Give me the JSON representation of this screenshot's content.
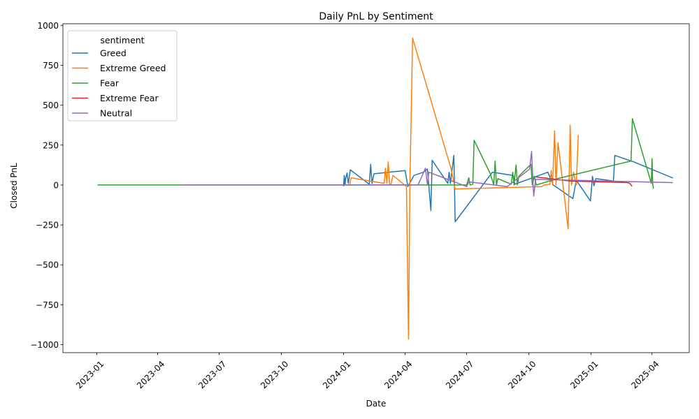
{
  "chart_data": {
    "type": "line",
    "title": "Daily PnL by Sentiment",
    "xlabel": "Date",
    "ylabel": "Closed PnL",
    "x_axis_type": "date",
    "xlim": [
      "2022-11-12",
      "2025-05-26"
    ],
    "ylim": [
      -1050,
      1010
    ],
    "x_ticks": [
      "2023-01",
      "2023-04",
      "2023-07",
      "2023-10",
      "2024-01",
      "2024-04",
      "2024-07",
      "2024-10",
      "2025-01",
      "2025-04"
    ],
    "y_ticks": [
      -1000,
      -750,
      -500,
      -250,
      0,
      250,
      500,
      750,
      1000
    ],
    "y_tick_labels": [
      "−1000",
      "−750",
      "−500",
      "−250",
      "0",
      "250",
      "500",
      "750",
      "1000"
    ],
    "grid": false,
    "legend": {
      "title": "sentiment",
      "position": "top-left"
    },
    "series": [
      {
        "name": "Greed",
        "color": "#1f77b4",
        "points": [
          [
            "2024-01-01",
            -5
          ],
          [
            "2024-01-02",
            60
          ],
          [
            "2024-01-03",
            0
          ],
          [
            "2024-01-04",
            40
          ],
          [
            "2024-01-06",
            75
          ],
          [
            "2024-01-08",
            10
          ],
          [
            "2024-01-11",
            95
          ],
          [
            "2024-02-08",
            5
          ],
          [
            "2024-02-10",
            130
          ],
          [
            "2024-02-12",
            10
          ],
          [
            "2024-02-15",
            70
          ],
          [
            "2024-04-01",
            90
          ],
          [
            "2024-04-05",
            -10
          ],
          [
            "2024-04-14",
            60
          ],
          [
            "2024-04-28",
            80
          ],
          [
            "2024-05-04",
            100
          ],
          [
            "2024-05-09",
            -160
          ],
          [
            "2024-05-11",
            155
          ],
          [
            "2024-06-03",
            10
          ],
          [
            "2024-06-05",
            80
          ],
          [
            "2024-06-07",
            10
          ],
          [
            "2024-06-12",
            185
          ],
          [
            "2024-06-14",
            -230
          ],
          [
            "2024-08-08",
            80
          ],
          [
            "2024-09-08",
            60
          ],
          [
            "2024-09-10",
            5
          ],
          [
            "2024-10-29",
            80
          ],
          [
            "2024-11-06",
            0
          ],
          [
            "2024-12-05",
            -85
          ],
          [
            "2024-12-10",
            30
          ],
          [
            "2024-12-31",
            -100
          ],
          [
            "2025-01-03",
            55
          ],
          [
            "2025-01-05",
            -5
          ],
          [
            "2025-01-08",
            40
          ],
          [
            "2025-02-03",
            25
          ],
          [
            "2025-02-05",
            185
          ],
          [
            "2025-03-05",
            145
          ],
          [
            "2025-05-01",
            45
          ]
        ]
      },
      {
        "name": "Extreme Greed",
        "color": "#ff7f0e",
        "points": [
          [
            "2024-01-05",
            0
          ],
          [
            "2024-01-10",
            0
          ],
          [
            "2024-01-12",
            45
          ],
          [
            "2024-03-01",
            10
          ],
          [
            "2024-03-03",
            105
          ],
          [
            "2024-03-05",
            10
          ],
          [
            "2024-03-07",
            145
          ],
          [
            "2024-03-09",
            0
          ],
          [
            "2024-03-11",
            5
          ],
          [
            "2024-03-14",
            60
          ],
          [
            "2024-04-03",
            -10
          ],
          [
            "2024-04-06",
            -965
          ],
          [
            "2024-04-08",
            0
          ],
          [
            "2024-04-12",
            920
          ],
          [
            "2024-06-08",
            100
          ],
          [
            "2024-06-14",
            -25
          ],
          [
            "2024-10-20",
            -10
          ],
          [
            "2024-10-23",
            0
          ],
          [
            "2024-11-01",
            5
          ],
          [
            "2024-11-03",
            90
          ],
          [
            "2024-11-05",
            0
          ],
          [
            "2024-11-08",
            340
          ],
          [
            "2024-11-10",
            0
          ],
          [
            "2024-11-13",
            265
          ],
          [
            "2024-11-28",
            -275
          ],
          [
            "2024-12-01",
            375
          ],
          [
            "2024-12-03",
            0
          ],
          [
            "2024-12-06",
            80
          ],
          [
            "2024-12-10",
            0
          ],
          [
            "2024-12-13",
            310
          ]
        ]
      },
      {
        "name": "Fear",
        "color": "#2ca02c",
        "points": [
          [
            "2023-01-03",
            0
          ],
          [
            "2024-01-01",
            0
          ],
          [
            "2024-07-01",
            0
          ],
          [
            "2024-07-04",
            45
          ],
          [
            "2024-07-06",
            0
          ],
          [
            "2024-07-10",
            5
          ],
          [
            "2024-07-12",
            280
          ],
          [
            "2024-08-05",
            70
          ],
          [
            "2024-08-10",
            0
          ],
          [
            "2024-08-12",
            150
          ],
          [
            "2024-08-14",
            0
          ],
          [
            "2024-08-16",
            40
          ],
          [
            "2024-09-05",
            5
          ],
          [
            "2024-09-07",
            80
          ],
          [
            "2024-09-09",
            0
          ],
          [
            "2024-09-12",
            125
          ],
          [
            "2024-09-14",
            0
          ],
          [
            "2024-09-16",
            55
          ],
          [
            "2024-10-04",
            130
          ],
          [
            "2024-10-06",
            0
          ],
          [
            "2024-10-09",
            55
          ],
          [
            "2024-10-12",
            0
          ],
          [
            "2024-11-12",
            40
          ],
          [
            "2025-03-01",
            150
          ],
          [
            "2025-03-03",
            415
          ],
          [
            "2025-03-31",
            10
          ],
          [
            "2025-04-01",
            165
          ],
          [
            "2025-04-02",
            10
          ],
          [
            "2025-04-03",
            -20
          ]
        ]
      },
      {
        "name": "Extreme Fear",
        "color": "#d62728",
        "points": [
          [
            "2024-10-12",
            50
          ],
          [
            "2024-12-01",
            25
          ],
          [
            "2025-02-24",
            15
          ],
          [
            "2025-02-27",
            10
          ],
          [
            "2025-03-02",
            -5
          ]
        ]
      },
      {
        "name": "Neutral",
        "color": "#9467bd",
        "points": [
          [
            "2023-05-08",
            0
          ],
          [
            "2024-04-20",
            0
          ],
          [
            "2024-05-01",
            105
          ],
          [
            "2024-05-04",
            0
          ],
          [
            "2024-05-06",
            80
          ],
          [
            "2024-07-01",
            -10
          ],
          [
            "2024-07-04",
            20
          ],
          [
            "2024-08-30",
            -10
          ],
          [
            "2024-10-02",
            100
          ],
          [
            "2024-10-05",
            210
          ],
          [
            "2024-10-08",
            -70
          ],
          [
            "2024-10-11",
            35
          ],
          [
            "2025-05-01",
            15
          ]
        ]
      }
    ]
  }
}
